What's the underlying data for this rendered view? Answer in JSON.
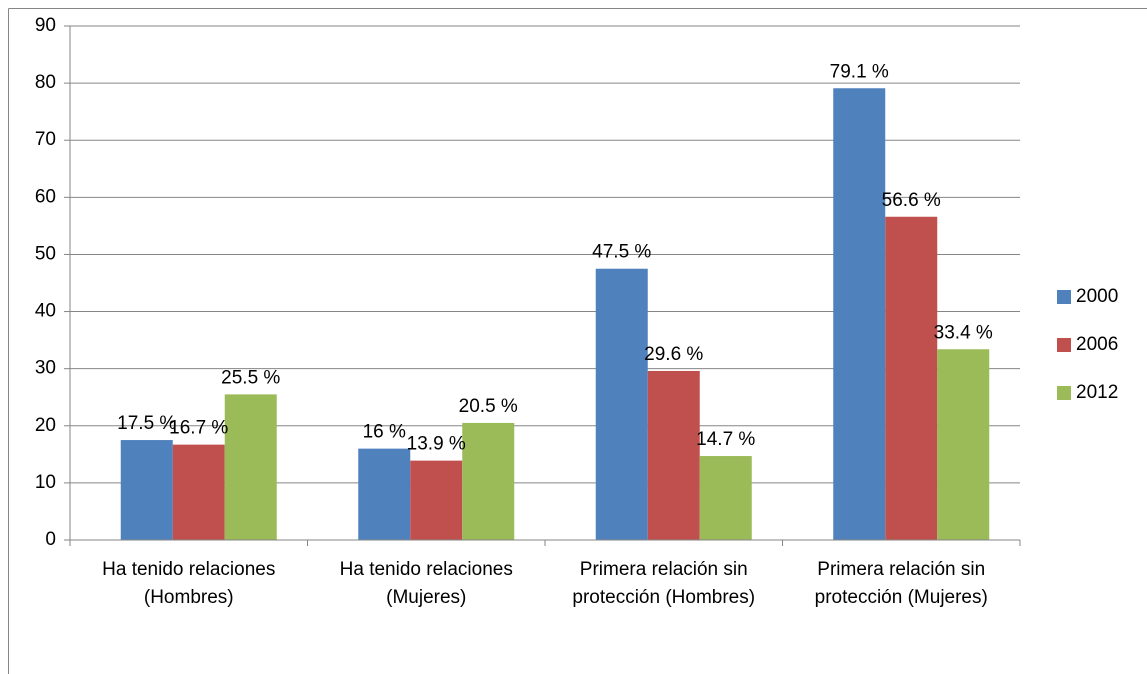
{
  "chart_data": {
    "type": "bar",
    "categories": [
      "Ha tenido relaciones (Hombres)",
      "Ha tenido relaciones (Mujeres)",
      "Primera relación sin protección (Hombres)",
      "Primera relación sin protección (Mujeres)"
    ],
    "series": [
      {
        "name": "2000",
        "color": "#4f81bd",
        "values": [
          17.5,
          16,
          47.5,
          79.1
        ],
        "value_labels": [
          "17.5 %",
          "16 %",
          "47.5 %",
          "79.1 %"
        ]
      },
      {
        "name": "2006",
        "color": "#c0504d",
        "values": [
          16.7,
          13.9,
          29.6,
          56.6
        ],
        "value_labels": [
          "16.7 %",
          "13.9 %",
          "29.6 %",
          "56.6 %"
        ]
      },
      {
        "name": "2012",
        "color": "#9bbb59",
        "values": [
          25.5,
          20.5,
          14.7,
          33.4
        ],
        "value_labels": [
          "25.5 %",
          "20.5 %",
          "14.7 %",
          "33.4 %"
        ]
      }
    ],
    "ylim": [
      0,
      90
    ],
    "yticks": [
      0,
      10,
      20,
      30,
      40,
      50,
      60,
      70,
      80,
      90
    ],
    "grid": true,
    "legend": "right"
  }
}
